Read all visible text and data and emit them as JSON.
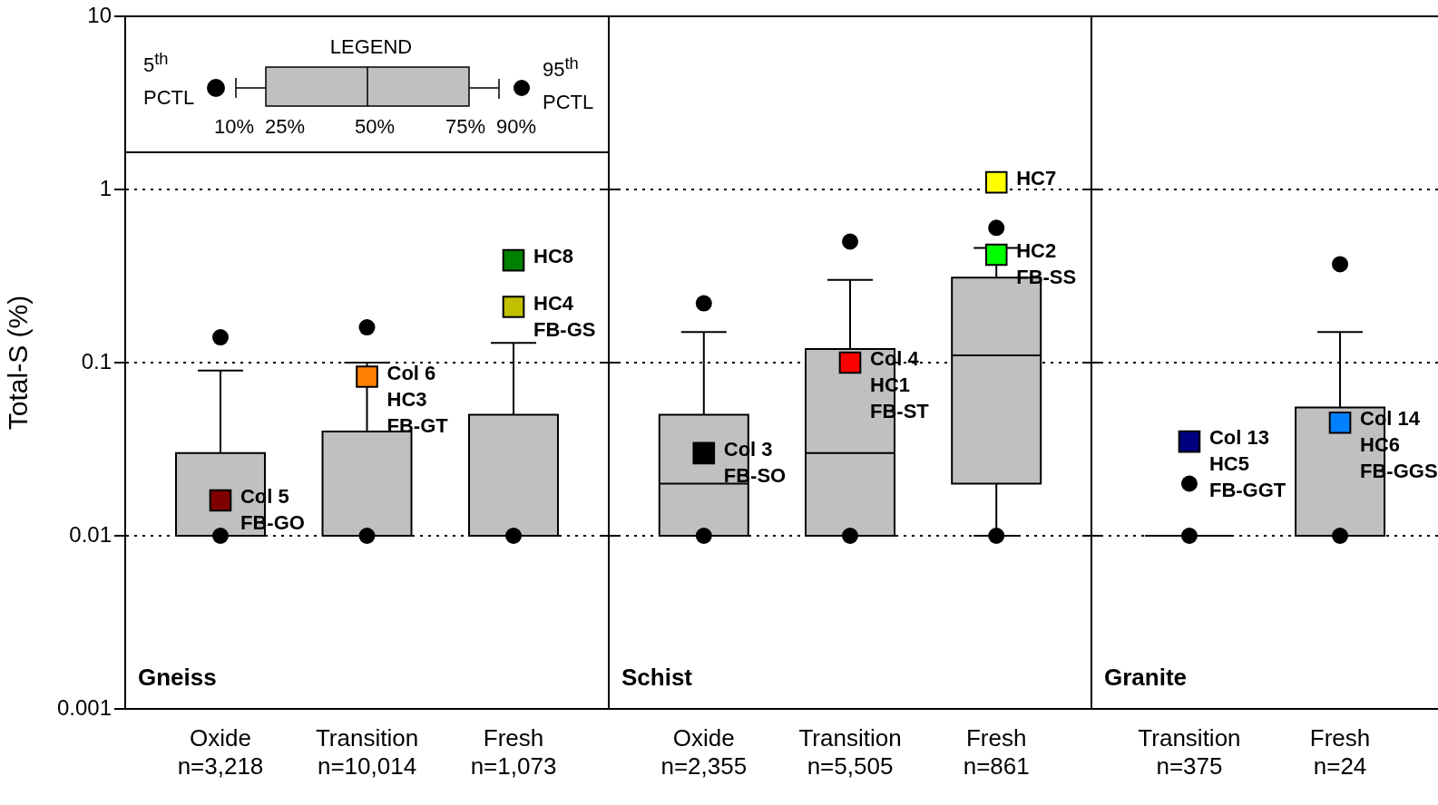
{
  "chart_data": [
    {
      "type": "box",
      "color": "#c0c0c0",
      "ylabel": "Total-S (%)",
      "log": true,
      "grid": "y",
      "marker": "square",
      "ylim": [
        0.001,
        10
      ],
      "yticks": [
        0.001,
        0.01,
        0.1,
        1,
        10
      ],
      "categories": [
        "Oxide\nn=3,218",
        "Transition\nn=10,014",
        "Fresh\nn=1,073"
      ],
      "boxes": [
        {
          "low": 0.01,
          "q1": 0.01,
          "median": 0.01,
          "q3": 0.03,
          "high": 0.09,
          "outliers": [
            0.01,
            0.14
          ]
        },
        {
          "low": 0.01,
          "q1": 0.01,
          "median": 0.01,
          "q3": 0.04,
          "high": 0.1,
          "outliers": [
            0.01,
            0.16
          ]
        },
        {
          "low": 0.01,
          "q1": 0.01,
          "median": 0.01,
          "q3": 0.05,
          "high": 0.13,
          "outliers": [
            0.01
          ]
        }
      ],
      "series": [
        {
          "type": "scatter",
          "name": "Col 5\nFB-GO",
          "color": "#800000",
          "x": [
            "Oxide\nn=3,218"
          ],
          "values": [
            0.016
          ]
        },
        {
          "type": "scatter",
          "name": "Col 6\nHC3\nFB-GT",
          "color": "#ff8000",
          "x": [
            "Transition\nn=10,014"
          ],
          "values": [
            0.083
          ]
        },
        {
          "type": "scatter",
          "name": "HC8",
          "color": "#008000",
          "x": [
            "Fresh\nn=1,073"
          ],
          "values": [
            0.39
          ]
        },
        {
          "type": "scatter",
          "name": "HC4\nFB-GS",
          "color": "#c0c000",
          "x": [
            "Fresh\nn=1,073"
          ],
          "values": [
            0.21
          ]
        }
      ],
      "annotations": [
        "Gneiss",
        "LEGEND",
        "5$^{th}$\nPCTL",
        "95$^{th}$\nPCTL",
        "10%",
        "25%",
        "50%",
        "75%",
        "90%"
      ]
    },
    {
      "type": "box",
      "log": true,
      "grid": "y",
      "marker": "square",
      "tick_labels": "x",
      "ylim": [
        0.001,
        10
      ],
      "yticks": [
        0.001,
        0.01,
        0.1,
        1,
        10
      ],
      "color": "#c0c0c0",
      "categories": [
        "Oxide\nn=2,355",
        "Transition\nn=5,505",
        "Fresh\nn=861"
      ],
      "boxes": [
        {
          "low": 0.01,
          "q1": 0.01,
          "median": 0.02,
          "q3": 0.05,
          "high": 0.15,
          "outliers": [
            0.01,
            0.22
          ]
        },
        {
          "low": 0.01,
          "q1": 0.01,
          "median": 0.03,
          "q3": 0.12,
          "high": 0.3,
          "outliers": [
            0.01,
            0.5
          ]
        },
        {
          "low": 0.01,
          "q1": 0.02,
          "median": 0.11,
          "q3": 0.31,
          "high": 0.46,
          "outliers": [
            0.01,
            0.6
          ]
        }
      ],
      "series": [
        {
          "type": "scatter",
          "name": "Col 3\nFB-SO",
          "color": "#000000",
          "x": [
            "Oxide\nn=2,355"
          ],
          "values": [
            0.03
          ]
        },
        {
          "type": "scatter",
          "name": "Col 4\nHC1\nFB-ST",
          "color": "#ff0000",
          "x": [
            "Transition\nn=5,505"
          ],
          "values": [
            0.1
          ]
        },
        {
          "type": "scatter",
          "name": "HC7",
          "color": "#ffff00",
          "x": [
            "Fresh\nn=861"
          ],
          "values": [
            1.1
          ]
        },
        {
          "type": "scatter",
          "name": "HC2\nFB-SS",
          "color": "#00ff00",
          "x": [
            "Fresh\nn=861"
          ],
          "values": [
            0.42
          ]
        }
      ],
      "annotations": [
        "Schist"
      ]
    },
    {
      "type": "box",
      "log": true,
      "grid": "y",
      "marker": "square",
      "tick_labels": "x",
      "ylim": [
        0.001,
        10
      ],
      "yticks": [
        0.001,
        0.01,
        0.1,
        1,
        10
      ],
      "colors": [
        "#000000",
        "#c0c0c0"
      ],
      "categories": [
        "Transition\nn=375",
        "Fresh\nn=24"
      ],
      "boxes": [
        {
          "low": 0.01,
          "q1": 0.01,
          "median": 0.01,
          "q3": 0.01,
          "high": 0.01,
          "outliers": [
            0.01,
            0.02
          ]
        },
        {
          "low": 0.01,
          "q1": 0.01,
          "median": 0.01,
          "q3": 0.055,
          "high": 0.15,
          "outliers": [
            0.01,
            0.37
          ]
        }
      ],
      "series": [
        {
          "type": "scatter",
          "name": "Col 13\nHC5\nFB-GGT",
          "color": "#000080",
          "x": [
            "Transition\nn=375"
          ],
          "values": [
            0.035
          ]
        },
        {
          "type": "scatter",
          "name": "Col 14\nHC6\nFB-GGS",
          "color": "#0080ff",
          "x": [
            "Fresh\nn=24"
          ],
          "values": [
            0.045
          ]
        }
      ],
      "annotations": [
        "Granite"
      ]
    }
  ]
}
